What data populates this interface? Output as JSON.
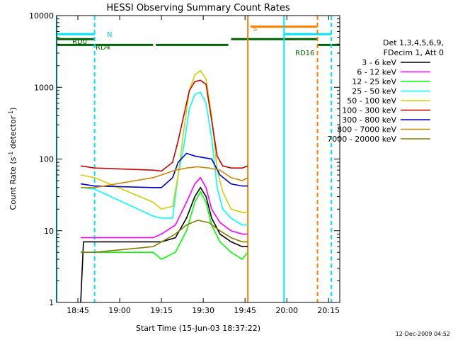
{
  "chart_data": {
    "type": "line",
    "title": "HESSI Observing Summary Count Rates",
    "xlabel": "Start Time (15-Jun-03 18:37:22)",
    "ylabel": "Count Rate (s⁻¹ detector⁻¹)",
    "ylabel_main": "Count Rate (s",
    "ylabel_sup1": "-1",
    "ylabel_mid": " detector",
    "ylabel_sup2": "-1",
    "ylabel_end": ")",
    "y_scale": "log",
    "ylim": [
      1,
      10000
    ],
    "xlim": [
      "18:37:22",
      "20:19:00"
    ],
    "x_ticks": [
      "18:45",
      "19:00",
      "19:15",
      "19:30",
      "19:45",
      "20:00",
      "20:15"
    ],
    "y_ticks": [
      "1",
      "10",
      "100",
      "1000",
      "10000"
    ],
    "legend_title": [
      "Det 1,3,4,5,6,9,",
      "FDecim 1, Att 0"
    ],
    "legend_position": "right",
    "timestamp": "12-Dec-2009 04:52",
    "annotations": {
      "N": "N",
      "S": "S",
      "RD0": "RD0",
      "RD4": "RD4",
      "RD16": "RD16"
    },
    "flags": [
      {
        "name": "SAA/Night N",
        "color": "#00e5ff",
        "segments": [
          [
            "18:37:22",
            "18:51:00"
          ],
          [
            "19:59:00",
            "20:16:00"
          ]
        ],
        "level": 5500
      },
      {
        "name": "Att S",
        "color": "#ff8000",
        "segments": [
          [
            "19:47:00",
            "20:11:00"
          ]
        ],
        "level": 7000
      },
      {
        "name": "RD0",
        "color": "#006400",
        "segments": [
          [
            "18:37:22",
            "18:51:00"
          ],
          [
            "19:40:00",
            "20:11:00"
          ]
        ],
        "level": 4700
      },
      {
        "name": "RD4/RD16",
        "color": "#006400",
        "segments": [
          [
            "18:37:22",
            "19:12:00"
          ],
          [
            "19:13:00",
            "19:39:00"
          ],
          [
            "20:11:00",
            "20:19:00"
          ]
        ],
        "level": 3900
      }
    ],
    "vertical_lines": [
      {
        "time": "18:37:22",
        "color": "#00e5ff",
        "style": "solid"
      },
      {
        "time": "18:51:00",
        "color": "#00e5ff",
        "style": "dashed"
      },
      {
        "time": "19:46:00",
        "color": "#ff8000",
        "style": "solid"
      },
      {
        "time": "19:59:00",
        "color": "#00e5ff",
        "style": "solid"
      },
      {
        "time": "20:11:00",
        "color": "#ff8000",
        "style": "dashed"
      },
      {
        "time": "20:16:00",
        "color": "#00e5ff",
        "style": "dashed"
      }
    ],
    "series": [
      {
        "name": "3 - 6 keV",
        "color": "#000000",
        "x": [
          "18:46:00",
          "18:47:00",
          "18:51:00",
          "19:12:00",
          "19:15:00",
          "19:20:00",
          "19:24:00",
          "19:27:00",
          "19:29:00",
          "19:31:00",
          "19:33:00",
          "19:36:00",
          "19:40:00",
          "19:44:00",
          "19:46:00"
        ],
        "y": [
          1,
          7,
          7,
          7,
          7,
          8,
          15,
          30,
          40,
          30,
          15,
          9,
          7,
          6,
          6
        ]
      },
      {
        "name": "6 - 12 keV",
        "color": "#ff00ff",
        "x": [
          "18:46:00",
          "18:51:00",
          "19:12:00",
          "19:15:00",
          "19:20:00",
          "19:24:00",
          "19:27:00",
          "19:29:00",
          "19:31:00",
          "19:33:00",
          "19:36:00",
          "19:40:00",
          "19:44:00",
          "19:46:00"
        ],
        "y": [
          8,
          8,
          8,
          9,
          12,
          25,
          45,
          55,
          40,
          20,
          13,
          10,
          9,
          9
        ]
      },
      {
        "name": "12 - 25 keV",
        "color": "#00ff00",
        "x": [
          "18:46:00",
          "18:51:00",
          "19:12:00",
          "19:15:00",
          "19:20:00",
          "19:24:00",
          "19:27:00",
          "19:29:00",
          "19:31:00",
          "19:33:00",
          "19:36:00",
          "19:40:00",
          "19:44:00",
          "19:46:00"
        ],
        "y": [
          5,
          5,
          5,
          4,
          5,
          10,
          25,
          35,
          25,
          12,
          7,
          5,
          4,
          5
        ]
      },
      {
        "name": "25 - 50 keV",
        "color": "#00ffff",
        "x": [
          "18:46:00",
          "18:51:00",
          "19:12:00",
          "19:15:00",
          "19:19:00",
          "19:21:00",
          "19:23:00",
          "19:25:00",
          "19:27:00",
          "19:29:00",
          "19:31:00",
          "19:33:00",
          "19:35:00",
          "19:37:00",
          "19:40:00",
          "19:44:00",
          "19:46:00"
        ],
        "y": [
          40,
          38,
          16,
          15,
          15,
          60,
          150,
          500,
          800,
          850,
          600,
          200,
          40,
          20,
          15,
          12,
          12
        ]
      },
      {
        "name": "50 - 100 keV",
        "color": "#d0d000",
        "x": [
          "18:46:00",
          "18:51:00",
          "19:12:00",
          "19:15:00",
          "19:19:00",
          "19:21:00",
          "19:23:00",
          "19:25:00",
          "19:27:00",
          "19:29:00",
          "19:31:00",
          "19:33:00",
          "19:35:00",
          "19:37:00",
          "19:40:00",
          "19:44:00",
          "19:46:00"
        ],
        "y": [
          60,
          55,
          25,
          20,
          22,
          60,
          250,
          900,
          1500,
          1700,
          1300,
          400,
          70,
          35,
          20,
          18,
          18
        ]
      },
      {
        "name": "100 - 300 keV",
        "color": "#cc0000",
        "x": [
          "18:46:00",
          "18:51:00",
          "19:12:00",
          "19:15:00",
          "19:19:00",
          "19:21:00",
          "19:23:00",
          "19:25:00",
          "19:27:00",
          "19:29:00",
          "19:31:00",
          "19:33:00",
          "19:35:00",
          "19:37:00",
          "19:40:00",
          "19:44:00",
          "19:46:00"
        ],
        "y": [
          80,
          75,
          70,
          68,
          90,
          180,
          400,
          900,
          1200,
          1250,
          1100,
          350,
          110,
          80,
          75,
          75,
          80
        ]
      },
      {
        "name": "300 - 800 keV",
        "color": "#0000cc",
        "x": [
          "18:46:00",
          "18:51:00",
          "19:12:00",
          "19:15:00",
          "19:19:00",
          "19:21:00",
          "19:24:00",
          "19:27:00",
          "19:30:00",
          "19:33:00",
          "19:36:00",
          "19:40:00",
          "19:44:00",
          "19:46:00"
        ],
        "y": [
          45,
          42,
          40,
          40,
          55,
          90,
          120,
          110,
          105,
          100,
          60,
          45,
          42,
          42
        ]
      },
      {
        "name": "800 - 7000 keV",
        "color": "#cc8800",
        "x": [
          "18:46:00",
          "18:51:00",
          "19:12:00",
          "19:15:00",
          "19:20:00",
          "19:24:00",
          "19:28:00",
          "19:32:00",
          "19:36:00",
          "19:40:00",
          "19:44:00",
          "19:46:00"
        ],
        "y": [
          40,
          40,
          55,
          60,
          70,
          75,
          78,
          75,
          70,
          55,
          50,
          55
        ]
      },
      {
        "name": "7000 - 20000 keV",
        "color": "#808000",
        "x": [
          "18:46:00",
          "18:51:00",
          "19:12:00",
          "19:15:00",
          "19:20:00",
          "19:24:00",
          "19:28:00",
          "19:32:00",
          "19:36:00",
          "19:40:00",
          "19:44:00",
          "19:46:00"
        ],
        "y": [
          5,
          5,
          6,
          7,
          9,
          12,
          14,
          13,
          10,
          8,
          7,
          7
        ]
      }
    ]
  }
}
